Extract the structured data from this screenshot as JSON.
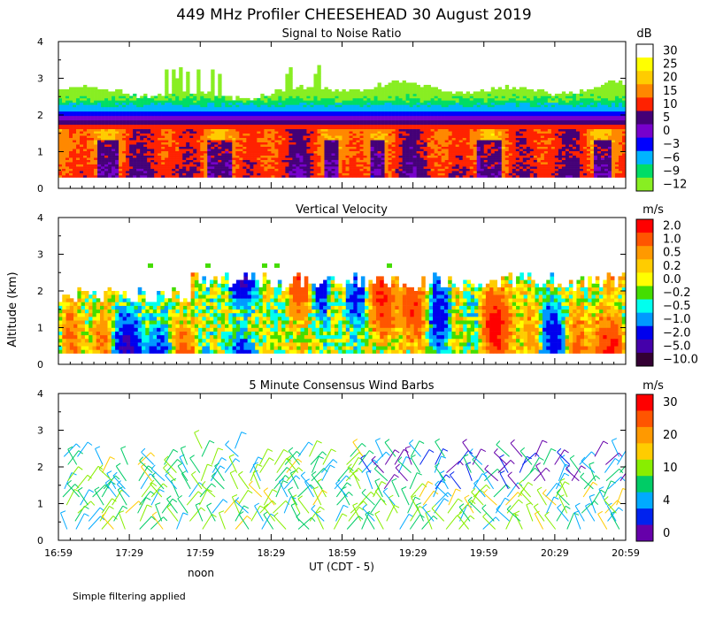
{
  "title": "449 MHz Profiler CHEESEHEAD 30 August 2019",
  "ylabel": "Altitude (km)",
  "xlabel": "UT  (CDT - 5)",
  "noon_label": "noon",
  "footnote": "Simple filtering applied",
  "x_ticks": [
    "16:59",
    "17:29",
    "17:59",
    "18:29",
    "18:59",
    "19:29",
    "19:59",
    "20:29",
    "20:59"
  ],
  "y_ticks": [
    "0",
    "1",
    "2",
    "3",
    "4"
  ],
  "panels": [
    {
      "title": "Signal to Noise Ratio",
      "unit": "dB",
      "colorbar": {
        "labels": [
          "30",
          "25",
          "20",
          "15",
          "10",
          "5",
          "0",
          "−3",
          "−6",
          "−9",
          "−12"
        ],
        "colors": [
          "#ffffff",
          "#ffff00",
          "#ffcc00",
          "#ff8800",
          "#ff2200",
          "#440077",
          "#7700cc",
          "#0000ff",
          "#00b4ff",
          "#00dd66",
          "#88ee22"
        ]
      }
    },
    {
      "title": "Vertical Velocity",
      "unit": "m/s",
      "colorbar": {
        "labels": [
          "2.0",
          "1.0",
          "0.5",
          "0.2",
          "0.0",
          "−0.2",
          "−0.5",
          "−1.0",
          "−2.0",
          "−5.0",
          "−10.0"
        ],
        "colors": [
          "#ff0000",
          "#ff5500",
          "#ff9900",
          "#ffcc00",
          "#ffff00",
          "#44dd00",
          "#00ffee",
          "#0099ff",
          "#0000ee",
          "#4400aa",
          "#330033"
        ]
      }
    },
    {
      "title": "5 Minute Consensus Wind Barbs",
      "unit": "m/s",
      "colorbar": {
        "labels": [
          "30",
          "20",
          "10",
          "4",
          "0"
        ],
        "colors": [
          "#ff0000",
          "#ff5500",
          "#ff9900",
          "#ffcc00",
          "#88ee00",
          "#00cc66",
          "#00aaff",
          "#0022ee",
          "#6600aa"
        ]
      }
    }
  ],
  "chart_data": [
    {
      "type": "heatmap",
      "title": "Signal to Noise Ratio",
      "xlabel": "UT  (CDT - 5)",
      "ylabel": "Altitude (km)",
      "x_range_ut": [
        "16:59",
        "20:59"
      ],
      "ylim": [
        0,
        4
      ],
      "units": "dB",
      "color_levels": [
        30,
        25,
        20,
        15,
        10,
        5,
        0,
        -3,
        -6,
        -9,
        -12
      ],
      "profile_summary": {
        "altitude_km": [
          0.3,
          0.8,
          1.2,
          1.6,
          1.9,
          2.1,
          2.4,
          2.7,
          3.2
        ],
        "typical_snr_db": [
          12,
          14,
          15,
          15,
          2,
          -3,
          -9,
          -12,
          -12
        ]
      },
      "echo_top_km": 2.7,
      "max_echo_top_km": 3.5
    },
    {
      "type": "heatmap",
      "title": "Vertical Velocity",
      "x_range_ut": [
        "16:59",
        "20:59"
      ],
      "ylim": [
        0,
        4
      ],
      "units": "m/s",
      "color_levels": [
        2.0,
        1.0,
        0.5,
        0.2,
        0.0,
        -0.2,
        -0.5,
        -1.0,
        -2.0,
        -5.0,
        -10.0
      ],
      "data_top_km": 2.3
    },
    {
      "type": "scatter",
      "title": "5 Minute Consensus Wind Barbs",
      "x_range_ut": [
        "16:59",
        "20:59"
      ],
      "ylim": [
        0,
        4
      ],
      "units": "m/s",
      "speed_levels": [
        30,
        20,
        10,
        4,
        0
      ],
      "typical_speed_ms": [
        8,
        12
      ],
      "barb_altitude_range_km": [
        0.3,
        2.6
      ]
    }
  ]
}
